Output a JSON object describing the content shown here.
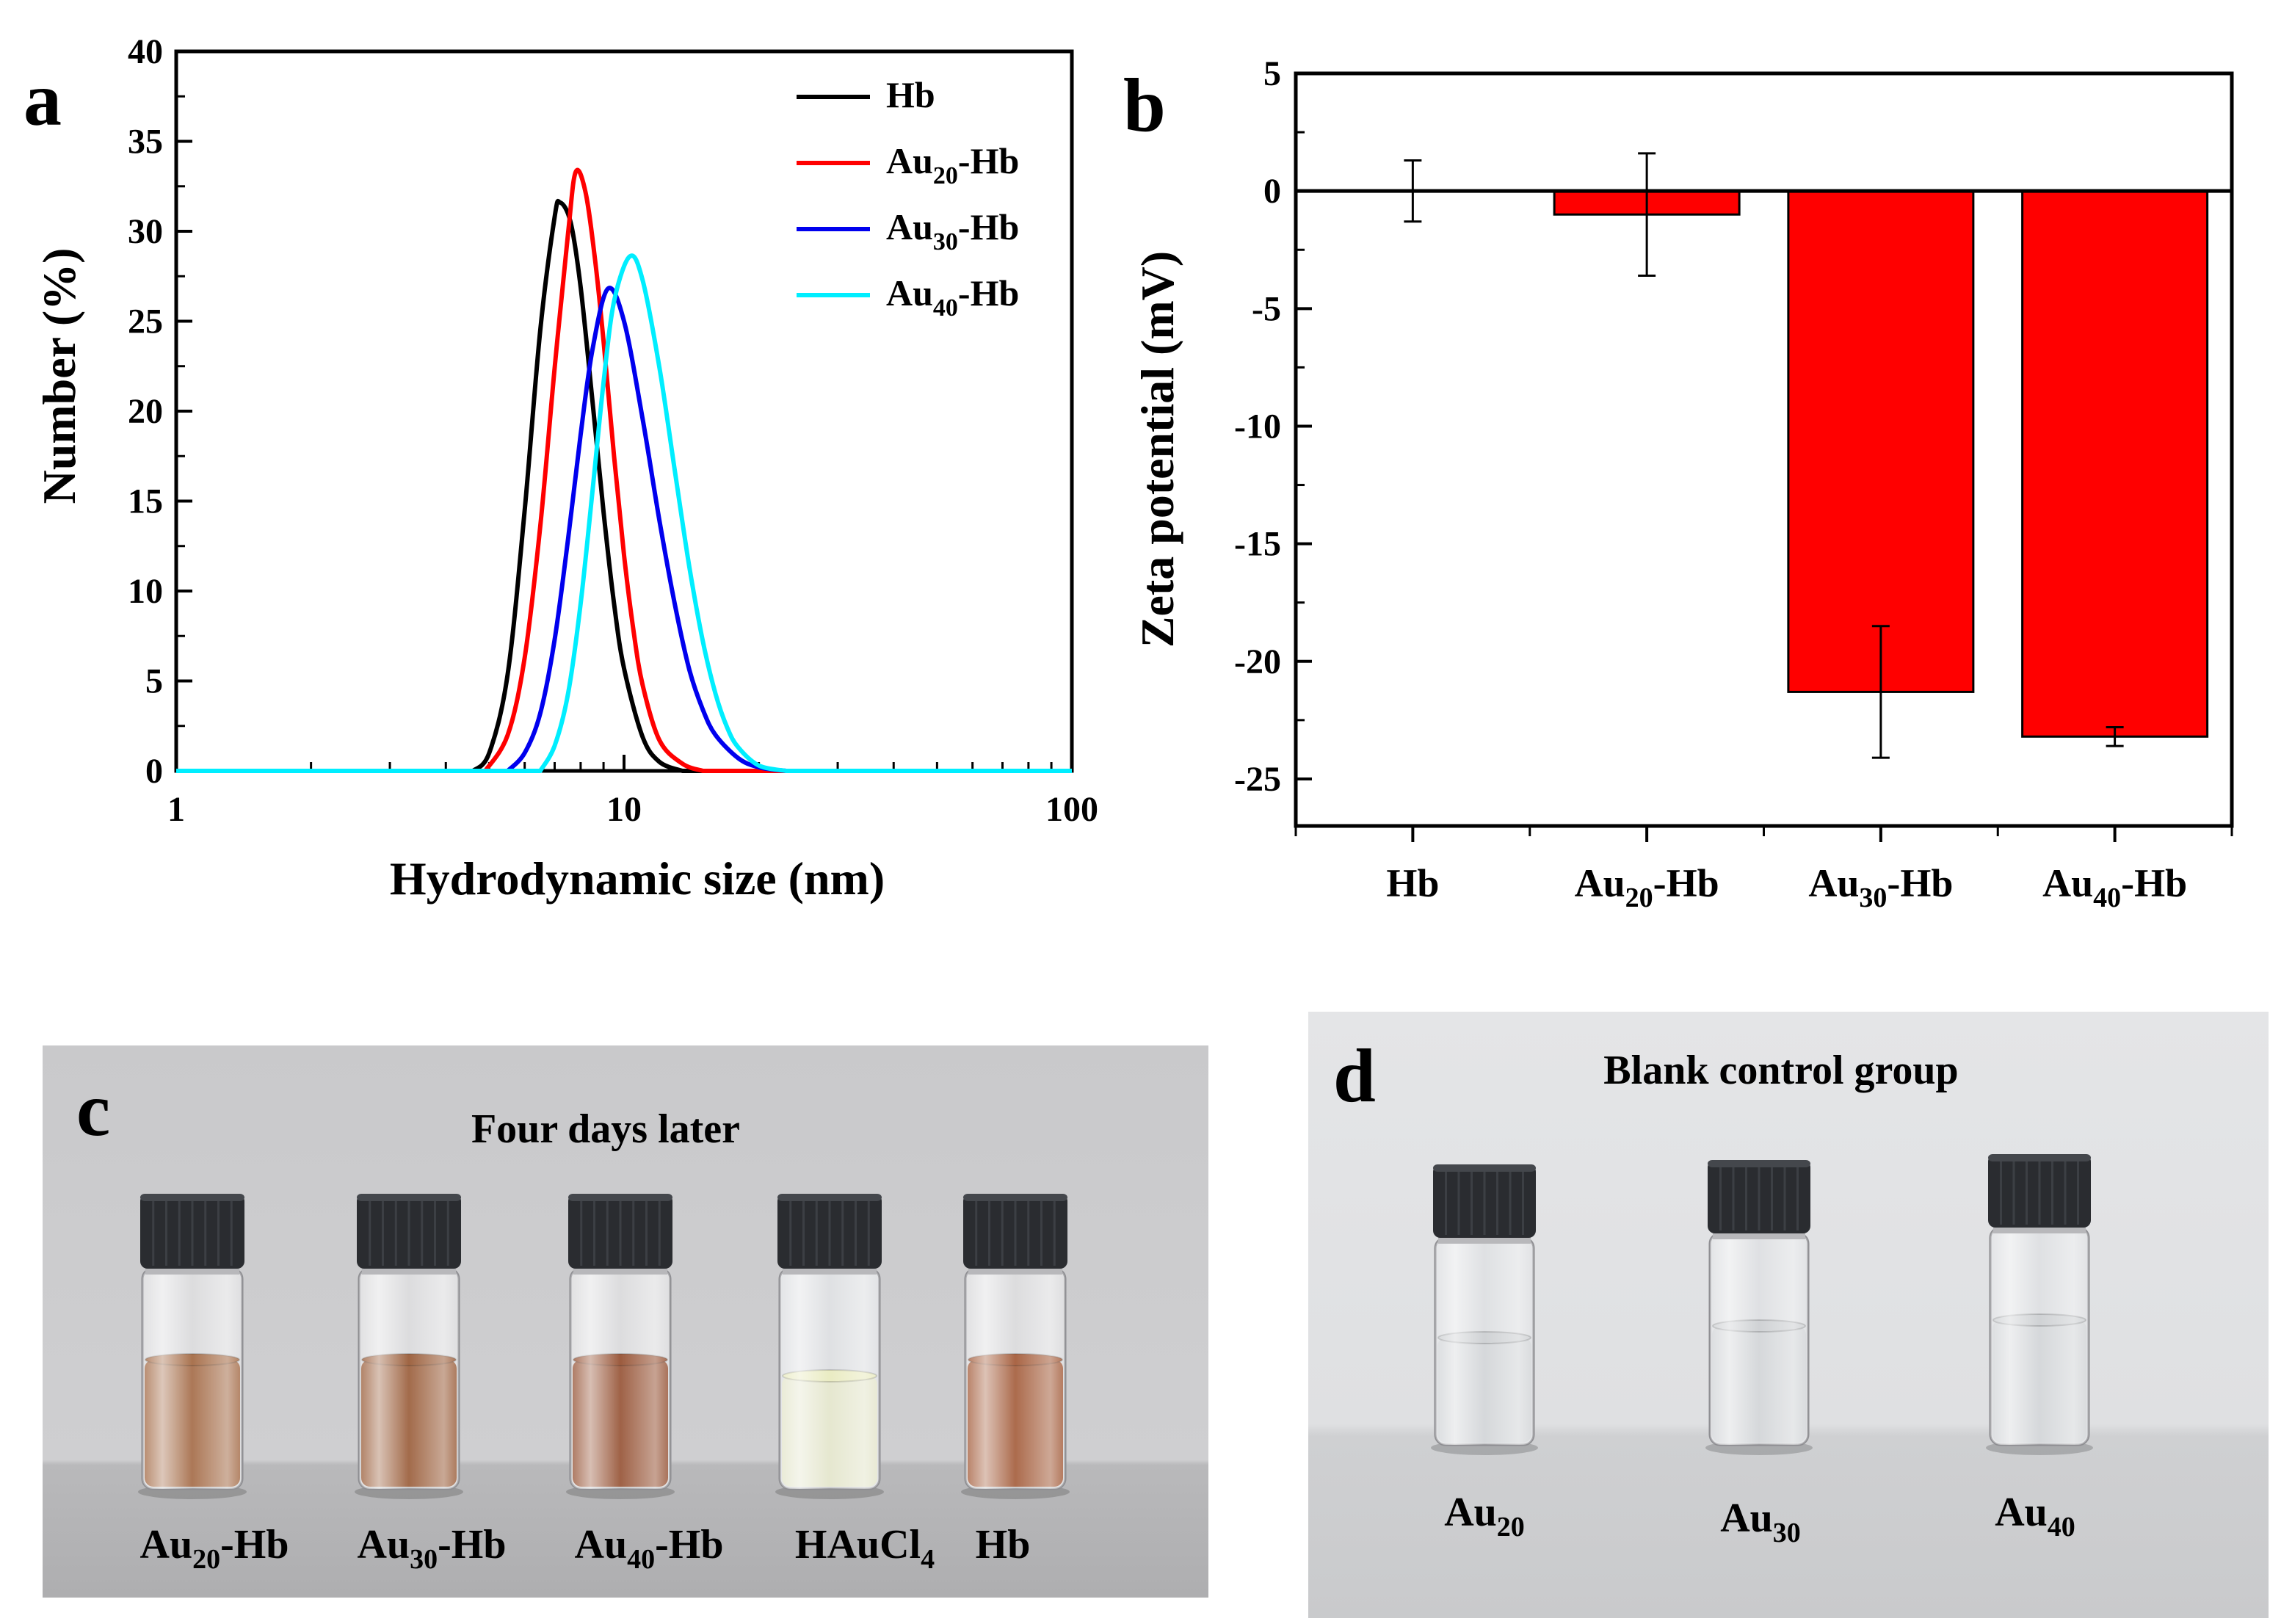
{
  "panels": {
    "a": "a",
    "b": "b",
    "c": "c",
    "d": "d"
  },
  "chart_data": [
    {
      "type": "line",
      "panel": "a",
      "xlabel": "Hydrodynamic size (nm)",
      "ylabel": "Number (%)",
      "xscale": "log",
      "xlim": [
        1,
        100
      ],
      "ylim": [
        0,
        40
      ],
      "xticks": [
        "1",
        "10",
        "100"
      ],
      "yticks": [
        "0",
        "5",
        "10",
        "15",
        "20",
        "25",
        "30",
        "35",
        "40"
      ],
      "legend_position": "top-right",
      "series": [
        {
          "name": "Hb",
          "name_base": "Hb",
          "name_sub": "",
          "name_suffix": "",
          "color": "#000000",
          "peak_x": 7.2,
          "peak_y": 31.6,
          "x": [
            4.6,
            5.0,
            5.5,
            6.0,
            6.5,
            7.0,
            7.2,
            7.6,
            8.0,
            8.5,
            9.0,
            9.5,
            10.0,
            11.0,
            12.0,
            13.5
          ],
          "y": [
            0,
            1.0,
            5.4,
            14.5,
            24.5,
            30.8,
            31.6,
            30.5,
            26.9,
            20.6,
            14.4,
            9.3,
            5.7,
            1.9,
            0.5,
            0
          ]
        },
        {
          "name": "Au20-Hb",
          "name_base": "Au",
          "name_sub": "20",
          "name_suffix": "-Hb",
          "color": "#ff0000",
          "peak_x": 7.8,
          "peak_y": 33.3,
          "x": [
            4.9,
            5.5,
            6.0,
            6.5,
            7.0,
            7.5,
            7.8,
            8.2,
            8.6,
            9.0,
            9.5,
            10.0,
            10.5,
            11.0,
            12.0,
            13.5,
            15.0
          ],
          "y": [
            0,
            2.0,
            6.3,
            13.6,
            22.4,
            29.9,
            33.3,
            32.2,
            28.6,
            23.9,
            17.5,
            12.0,
            7.8,
            4.8,
            1.7,
            0.4,
            0
          ]
        },
        {
          "name": "Au30-Hb",
          "name_base": "Au",
          "name_sub": "30",
          "name_suffix": "-Hb",
          "color": "#0000ee",
          "peak_x": 9.2,
          "peak_y": 26.8,
          "x": [
            5.5,
            6.0,
            6.5,
            7.0,
            7.5,
            8.0,
            8.5,
            9.2,
            10.0,
            11.0,
            12.0,
            13.0,
            14.0,
            15.0,
            16.0,
            18.0,
            20.0,
            23.0
          ],
          "y": [
            0,
            1.0,
            3.2,
            7.3,
            12.9,
            18.7,
            23.4,
            26.8,
            25.0,
            19.6,
            13.9,
            9.2,
            5.6,
            3.4,
            2.0,
            0.7,
            0.2,
            0
          ]
        },
        {
          "name": "Au40-Hb",
          "name_base": "Au",
          "name_sub": "40",
          "name_suffix": "-Hb",
          "color": "#00eeff",
          "peak_x": 10.3,
          "peak_y": 28.6,
          "x": [
            6.5,
            7.0,
            7.5,
            8.0,
            8.5,
            9.0,
            9.5,
            10.3,
            11.0,
            12.0,
            13.0,
            14.0,
            15.0,
            16.0,
            17.0,
            18.0,
            20.0,
            23.0
          ],
          "y": [
            0,
            1.4,
            4.3,
            9.3,
            15.5,
            21.6,
            26.1,
            28.6,
            27.3,
            22.4,
            16.6,
            11.3,
            7.2,
            4.3,
            2.4,
            1.3,
            0.3,
            0
          ]
        }
      ]
    },
    {
      "type": "bar",
      "panel": "b",
      "ylabel": "Zeta potential (mV)",
      "ylim": [
        -27,
        5
      ],
      "yticks": [
        "5",
        "0",
        "-5",
        "-10",
        "-15",
        "-20",
        "-25"
      ],
      "categories": [
        {
          "label": "Hb",
          "base": "Hb",
          "sub": "",
          "suffix": ""
        },
        {
          "label": "Au20-Hb",
          "base": "Au",
          "sub": "20",
          "suffix": "-Hb"
        },
        {
          "label": "Au30-Hb",
          "base": "Au",
          "sub": "30",
          "suffix": "-Hb"
        },
        {
          "label": "Au40-Hb",
          "base": "Au",
          "sub": "40",
          "suffix": "-Hb"
        }
      ],
      "values": [
        0,
        -1.0,
        -21.3,
        -23.2
      ],
      "errors": [
        1.3,
        2.6,
        2.8,
        0.4
      ],
      "bar_color": "#ff0000"
    }
  ],
  "photo_c": {
    "title": "Four days later",
    "labels": [
      {
        "base": "Au",
        "sub": "20",
        "suffix": "-Hb"
      },
      {
        "base": "Au",
        "sub": "30",
        "suffix": "-Hb"
      },
      {
        "base": "Au",
        "sub": "40",
        "suffix": "-Hb"
      },
      {
        "base": "HAuCl",
        "sub": "4",
        "suffix": ""
      },
      {
        "base": "Hb",
        "sub": "",
        "suffix": ""
      }
    ],
    "liquid_colors": [
      "#9a5a30",
      "#8e4a22",
      "#8a3e1c",
      "#e6e8b8",
      "#9a4a24"
    ]
  },
  "photo_d": {
    "title": "Blank control group",
    "labels": [
      {
        "base": "Au",
        "sub": "20",
        "suffix": ""
      },
      {
        "base": "Au",
        "sub": "30",
        "suffix": ""
      },
      {
        "base": "Au",
        "sub": "40",
        "suffix": ""
      }
    ]
  }
}
